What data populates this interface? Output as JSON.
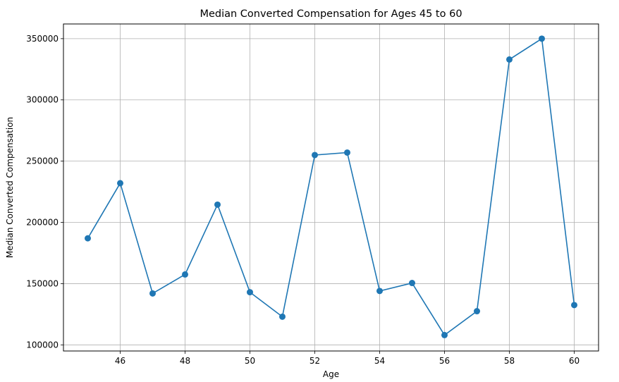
{
  "chart_data": {
    "type": "line",
    "title": "Median Converted Compensation for Ages 45 to 60",
    "xlabel": "Age",
    "ylabel": "Median Converted Compensation",
    "x": [
      45,
      46,
      47,
      48,
      49,
      50,
      51,
      52,
      53,
      54,
      55,
      56,
      57,
      58,
      59,
      60
    ],
    "series": [
      {
        "values": [
          187000,
          232000,
          142000,
          157500,
          214500,
          143000,
          123000,
          255000,
          257000,
          144000,
          150500,
          108000,
          127500,
          333000,
          350000,
          132500
        ]
      }
    ],
    "xlim": [
      44.25,
      60.75
    ],
    "ylim": [
      95000,
      362000
    ],
    "xticks": [
      46,
      48,
      50,
      52,
      54,
      56,
      58,
      60
    ],
    "yticks": [
      100000,
      150000,
      200000,
      250000,
      300000,
      350000
    ],
    "grid": true,
    "marker": "circle",
    "line_color": "#1f77b4"
  }
}
